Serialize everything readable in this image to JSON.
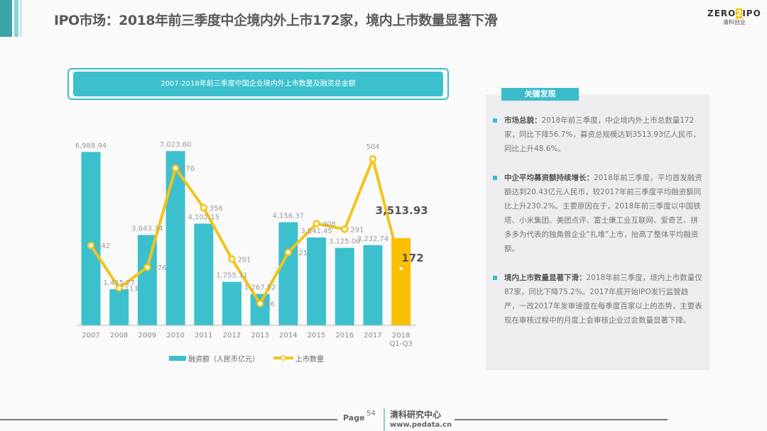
{
  "header": {
    "title": "IPO市场：2018年前三季度中企境内外上市172家，境内上市数量显著下滑",
    "logo_text": "ZERO2IPO",
    "logo_left": "ZERO",
    "logo_mid": "2",
    "logo_right": "IPO",
    "logo_sub": "清科创业"
  },
  "chart_data": {
    "type": "bar",
    "title": "2007-2018年前三季度中国企业境内外上市数量及融资总金额",
    "categories": [
      "2007",
      "2008",
      "2009",
      "2010",
      "2011",
      "2012",
      "2013",
      "2014",
      "2015",
      "2016",
      "2017",
      "2018\nQ1-Q3"
    ],
    "category_lines": [
      [
        "2007"
      ],
      [
        "2008"
      ],
      [
        "2009"
      ],
      [
        "2010"
      ],
      [
        "2011"
      ],
      [
        "2012"
      ],
      [
        "2013"
      ],
      [
        "2014"
      ],
      [
        "2015"
      ],
      [
        "2016"
      ],
      [
        "2017"
      ],
      [
        "2018",
        "Q1-Q3"
      ]
    ],
    "series": [
      {
        "name": "融资额（人民币亿元）",
        "type": "bar",
        "color": "#3cc0cd",
        "highlight_color": "#fbbf00",
        "values": [
          6988.94,
          1455.27,
          3643.34,
          7023.6,
          4102.15,
          1755.11,
          1267.52,
          4156.37,
          3541.45,
          3125.0,
          3232.74,
          3513.93
        ],
        "labels": [
          "6,988.94",
          "1,455.27",
          "3,643.34",
          "7,023.60",
          "4,102.15",
          "1,755.11",
          "1,267.52",
          "4,156.37",
          "3,541.45",
          "3,125.00",
          "3,232.74",
          "3,513.93"
        ]
      },
      {
        "name": "上市数量",
        "type": "line",
        "color": "#f2c31a",
        "values": [
          242,
          113,
          176,
          476,
          356,
          201,
          66,
          221,
          308,
          291,
          504,
          172
        ],
        "labels": [
          "242",
          "113",
          "176",
          "476",
          "356",
          "201",
          "66",
          "221",
          "308",
          "291",
          "504",
          "172"
        ]
      }
    ],
    "legend_position": "bottom",
    "grid": false
  },
  "panel": {
    "heading": "关键发现",
    "items": [
      {
        "title": "市场总貌：",
        "body": "2018年前三季度，中企境内外上市总数量172家，同比下降56.7%，募资总规模达到3513.93亿人民币，同比上升48.6%。"
      },
      {
        "title": "中企平均募资额持续增长：",
        "body": "2018年前三季度，平均首发融资额达到20.43亿元人民币，较2017年前三季度平均融资额同比上升230.2%。主要原因在于，2018年前三季度以中国铁塔、小米集团、美团点评、富士康工业互联网、爱奇艺、拼多多为代表的独角兽企业“扎堆”上市，抬高了整体平均融资额。"
      },
      {
        "title": "境内上市数量显著下滑：",
        "body": "2018年前三季度，境内上市数量仅87家，同比下降75.2%。2017年底开始IPO发行监管趋严，一改2017年发审速度在每季度百家以上的态势，主要表现在审核过程中的月度上会审核企业过会数量显著下降。"
      }
    ]
  },
  "footer": {
    "page_label": "Page",
    "page_number": "54",
    "org": "清科研究中心",
    "url": "www.pedata.cn"
  }
}
